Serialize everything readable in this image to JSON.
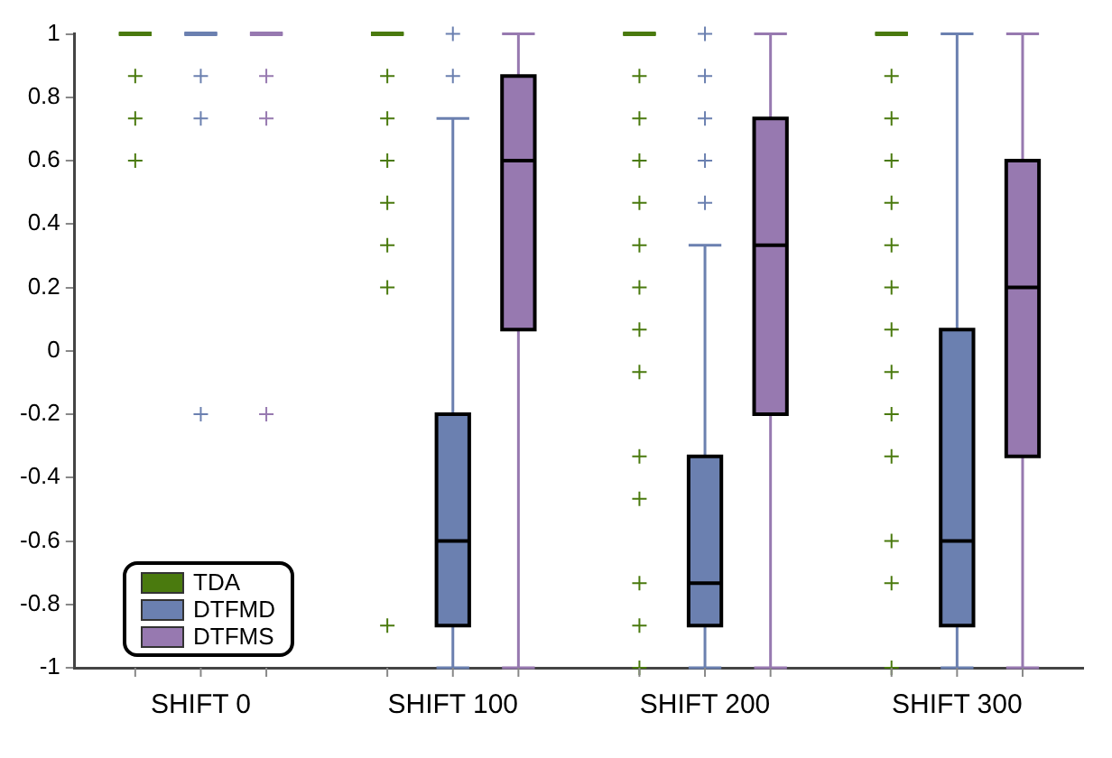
{
  "chart_data": {
    "type": "box",
    "categories": [
      "SHIFT 0",
      "SHIFT 100",
      "SHIFT 200",
      "SHIFT 300"
    ],
    "ylim": [
      -1,
      1
    ],
    "yticks": [
      -1,
      -0.8,
      -0.6,
      -0.4,
      -0.2,
      0,
      0.2,
      0.4,
      0.6,
      0.8,
      1
    ],
    "legend": "bottom left",
    "grid": false,
    "series": [
      {
        "name": "TDA",
        "color": "#4a7a0e",
        "boxes": [
          {
            "low": 1,
            "q1": 1,
            "median": 1,
            "q3": 1,
            "high": 1,
            "outliers": [
              0.867,
              0.733,
              0.6
            ]
          },
          {
            "low": 1,
            "q1": 1,
            "median": 1,
            "q3": 1,
            "high": 1,
            "outliers": [
              0.867,
              0.733,
              0.6,
              0.467,
              0.333,
              0.2,
              -0.867
            ]
          },
          {
            "low": 1,
            "q1": 1,
            "median": 1,
            "q3": 1,
            "high": 1,
            "outliers": [
              0.867,
              0.733,
              0.6,
              0.467,
              0.333,
              0.2,
              0.067,
              -0.067,
              -0.333,
              -0.467,
              -0.733,
              -0.867,
              -1
            ]
          },
          {
            "low": 1,
            "q1": 1,
            "median": 1,
            "q3": 1,
            "high": 1,
            "outliers": [
              0.867,
              0.733,
              0.6,
              0.467,
              0.333,
              0.2,
              0.067,
              -0.067,
              -0.2,
              -0.333,
              -0.6,
              -0.733,
              -1
            ]
          }
        ]
      },
      {
        "name": "DTFMD",
        "color": "#6b80b0",
        "boxes": [
          {
            "low": 1,
            "q1": 1,
            "median": 1,
            "q3": 1,
            "high": 1,
            "outliers": [
              0.867,
              0.733,
              -0.2
            ]
          },
          {
            "low": -1,
            "q1": -0.867,
            "median": -0.6,
            "q3": -0.2,
            "high": 0.733,
            "outliers": [
              1,
              0.867
            ]
          },
          {
            "low": -1,
            "q1": -0.867,
            "median": -0.733,
            "q3": -0.333,
            "high": 0.333,
            "outliers": [
              1,
              0.867,
              0.733,
              0.6,
              0.467
            ]
          },
          {
            "low": -1,
            "q1": -0.867,
            "median": -0.6,
            "q3": 0.067,
            "high": 1
          }
        ]
      },
      {
        "name": "DTFMS",
        "color": "#9779b0",
        "boxes": [
          {
            "low": 1,
            "q1": 1,
            "median": 1,
            "q3": 1,
            "high": 1,
            "outliers": [
              0.867,
              0.733,
              -0.2
            ]
          },
          {
            "low": -1,
            "q1": 0.067,
            "median": 0.6,
            "q3": 0.867,
            "high": 1
          },
          {
            "low": -1,
            "q1": -0.2,
            "median": 0.333,
            "q3": 0.733,
            "high": 1
          },
          {
            "low": -1,
            "q1": -0.333,
            "median": 0.2,
            "q3": 0.6,
            "high": 1
          }
        ]
      }
    ]
  }
}
